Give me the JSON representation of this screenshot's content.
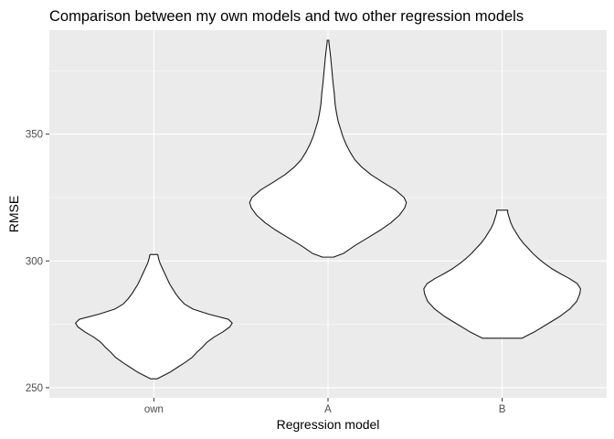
{
  "chart_data": {
    "type": "violin",
    "title": "Comparison between my own models and two other regression models",
    "xlabel": "Regression model",
    "ylabel": "RMSE",
    "categories": [
      "own",
      "A",
      "B"
    ],
    "yticks": [
      250,
      300,
      350
    ],
    "ylim": [
      246,
      391
    ],
    "grid": true,
    "background": "#ebebeb",
    "violins": [
      {
        "category": "own",
        "ymin": 253.5,
        "ymax": 302.5,
        "profile": [
          [
            253.5,
            0.04
          ],
          [
            256,
            0.2
          ],
          [
            258,
            0.3
          ],
          [
            260,
            0.4
          ],
          [
            262,
            0.49
          ],
          [
            264,
            0.55
          ],
          [
            266,
            0.62
          ],
          [
            268,
            0.68
          ],
          [
            270,
            0.77
          ],
          [
            272,
            0.88
          ],
          [
            274,
            0.97
          ],
          [
            275.5,
            1.0
          ],
          [
            277,
            0.95
          ],
          [
            279,
            0.7
          ],
          [
            281,
            0.5
          ],
          [
            283,
            0.39
          ],
          [
            285,
            0.33
          ],
          [
            287,
            0.28
          ],
          [
            289,
            0.24
          ],
          [
            291,
            0.2
          ],
          [
            293,
            0.17
          ],
          [
            295,
            0.14
          ],
          [
            297,
            0.11
          ],
          [
            299,
            0.08
          ],
          [
            301,
            0.06
          ],
          [
            302.5,
            0.05
          ]
        ]
      },
      {
        "category": "A",
        "ymin": 301.5,
        "ymax": 387,
        "profile": [
          [
            301.5,
            0.07
          ],
          [
            303,
            0.2
          ],
          [
            306,
            0.34
          ],
          [
            309,
            0.5
          ],
          [
            312,
            0.66
          ],
          [
            315,
            0.8
          ],
          [
            318,
            0.91
          ],
          [
            321,
            0.98
          ],
          [
            323,
            1.0
          ],
          [
            325,
            0.97
          ],
          [
            328,
            0.86
          ],
          [
            331,
            0.7
          ],
          [
            334,
            0.55
          ],
          [
            337,
            0.43
          ],
          [
            340,
            0.34
          ],
          [
            343,
            0.28
          ],
          [
            346,
            0.23
          ],
          [
            349,
            0.19
          ],
          [
            352,
            0.16
          ],
          [
            355,
            0.13
          ],
          [
            358,
            0.11
          ],
          [
            362,
            0.09
          ],
          [
            366,
            0.08
          ],
          [
            370,
            0.065
          ],
          [
            375,
            0.05
          ],
          [
            380,
            0.035
          ],
          [
            384,
            0.02
          ],
          [
            386,
            0.012
          ],
          [
            387,
            0.01
          ]
        ]
      },
      {
        "category": "B",
        "ymin": 269.5,
        "ymax": 320,
        "profile": [
          [
            269.5,
            0.25
          ],
          [
            272,
            0.41
          ],
          [
            275,
            0.57
          ],
          [
            278,
            0.73
          ],
          [
            281,
            0.86
          ],
          [
            284,
            0.95
          ],
          [
            287,
            0.99
          ],
          [
            289,
            1.0
          ],
          [
            291,
            0.96
          ],
          [
            293,
            0.86
          ],
          [
            295,
            0.74
          ],
          [
            297,
            0.63
          ],
          [
            299,
            0.54
          ],
          [
            301,
            0.46
          ],
          [
            303,
            0.39
          ],
          [
            305,
            0.33
          ],
          [
            307,
            0.27
          ],
          [
            309,
            0.22
          ],
          [
            311,
            0.18
          ],
          [
            313,
            0.14
          ],
          [
            315,
            0.11
          ],
          [
            317,
            0.09
          ],
          [
            319,
            0.07
          ],
          [
            320,
            0.07
          ]
        ]
      }
    ]
  }
}
